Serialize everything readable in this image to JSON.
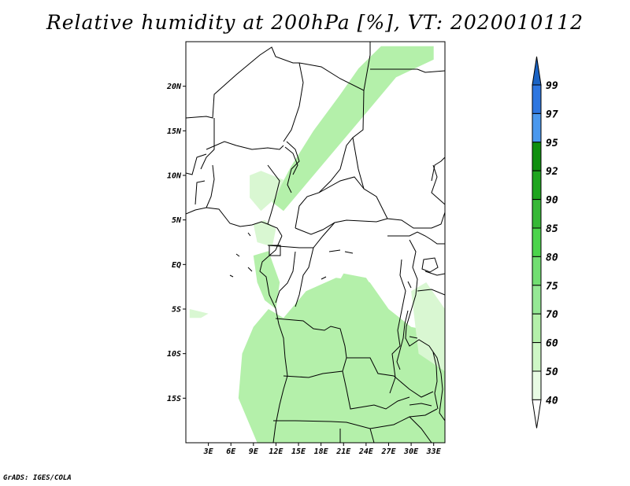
{
  "title": "Relative humidity at 200hPa [%], VT: 2020010112",
  "credit": "GrADS: IGES/COLA",
  "map": {
    "lon_range": [
      0,
      34.5
    ],
    "lat_range": [
      -20,
      25
    ],
    "lat_ticks": [
      {
        "value": 20,
        "label": "20N"
      },
      {
        "value": 15,
        "label": "15N"
      },
      {
        "value": 10,
        "label": "10N"
      },
      {
        "value": 5,
        "label": "5N"
      },
      {
        "value": 0,
        "label": "EQ"
      },
      {
        "value": -5,
        "label": "5S"
      },
      {
        "value": -10,
        "label": "10S"
      },
      {
        "value": -15,
        "label": "15S"
      }
    ],
    "lon_ticks": [
      {
        "value": 3,
        "label": "3E"
      },
      {
        "value": 6,
        "label": "6E"
      },
      {
        "value": 9,
        "label": "9E"
      },
      {
        "value": 12,
        "label": "12E"
      },
      {
        "value": 15,
        "label": "15E"
      },
      {
        "value": 18,
        "label": "18E"
      },
      {
        "value": 21,
        "label": "21E"
      },
      {
        "value": 24,
        "label": "24E"
      },
      {
        "value": 27,
        "label": "27E"
      },
      {
        "value": 30,
        "label": "30E"
      },
      {
        "value": 33,
        "label": "33E"
      }
    ],
    "field_color": "#b4f0aa",
    "field_color_light": "#d9f7d2",
    "humid_regions": [
      {
        "name": "sahel-diagonal-band",
        "level": 60,
        "lonlat": [
          [
            11.5,
            7
          ],
          [
            14,
            11
          ],
          [
            17,
            15
          ],
          [
            20.5,
            19
          ],
          [
            23,
            22
          ],
          [
            26,
            24.5
          ],
          [
            33,
            24.5
          ],
          [
            33,
            23
          ],
          [
            28,
            21
          ],
          [
            24,
            17
          ],
          [
            20,
            13
          ],
          [
            16,
            9
          ],
          [
            13,
            6
          ]
        ]
      },
      {
        "name": "west-coast-patch",
        "level": 50,
        "lonlat": [
          [
            8.5,
            10
          ],
          [
            10,
            10.5
          ],
          [
            13,
            9.5
          ],
          [
            12,
            7.5
          ],
          [
            10,
            6
          ],
          [
            8.5,
            7.5
          ]
        ]
      },
      {
        "name": "gulf-guinea-strip",
        "level": 50,
        "lonlat": [
          [
            9,
            4.5
          ],
          [
            10.5,
            5
          ],
          [
            12,
            4
          ],
          [
            11.5,
            2
          ],
          [
            9.5,
            2.5
          ]
        ]
      },
      {
        "name": "congo-coastal-strip",
        "level": 60,
        "lonlat": [
          [
            9,
            1
          ],
          [
            11,
            1.5
          ],
          [
            12.5,
            -2
          ],
          [
            12,
            -5
          ],
          [
            10.5,
            -4
          ],
          [
            9.5,
            -2
          ]
        ]
      },
      {
        "name": "southern-africa-block",
        "level": 60,
        "lonlat": [
          [
            11,
            -5
          ],
          [
            13,
            -6
          ],
          [
            16,
            -3
          ],
          [
            20,
            -1.5
          ],
          [
            24.5,
            -2
          ],
          [
            27,
            -5
          ],
          [
            30,
            -7
          ],
          [
            33,
            -7.5
          ],
          [
            34.5,
            -9
          ],
          [
            34.5,
            -20
          ],
          [
            9.5,
            -20
          ],
          [
            7,
            -15
          ],
          [
            7.5,
            -10
          ],
          [
            9,
            -7
          ]
        ]
      },
      {
        "name": "central-plume",
        "level": 60,
        "lonlat": [
          [
            19,
            -4
          ],
          [
            21,
            -1
          ],
          [
            24,
            -1.5
          ],
          [
            26,
            -4
          ],
          [
            25,
            -7
          ],
          [
            21,
            -8
          ]
        ]
      },
      {
        "name": "east-coast-patch",
        "level": 50,
        "lonlat": [
          [
            30,
            -3
          ],
          [
            32,
            -2
          ],
          [
            34.5,
            -5
          ],
          [
            34.5,
            -12
          ],
          [
            31,
            -10
          ]
        ]
      },
      {
        "name": "angola-southwest",
        "level": 50,
        "lonlat": [
          [
            0.5,
            -5
          ],
          [
            3,
            -5.5
          ],
          [
            2,
            -6
          ],
          [
            0.5,
            -6
          ]
        ]
      }
    ],
    "colorbar": {
      "levels": [
        "99",
        "97",
        "95",
        "92",
        "90",
        "85",
        "80",
        "75",
        "70",
        "60",
        "50",
        "40"
      ],
      "colors": [
        "#1a63c4",
        "#2d76e0",
        "#4a98ee",
        "#0f8f0f",
        "#1ea51e",
        "#37b837",
        "#4cd44c",
        "#72de72",
        "#95e895",
        "#b4f0aa",
        "#cef7c6",
        "#e8fbe4"
      ]
    }
  }
}
